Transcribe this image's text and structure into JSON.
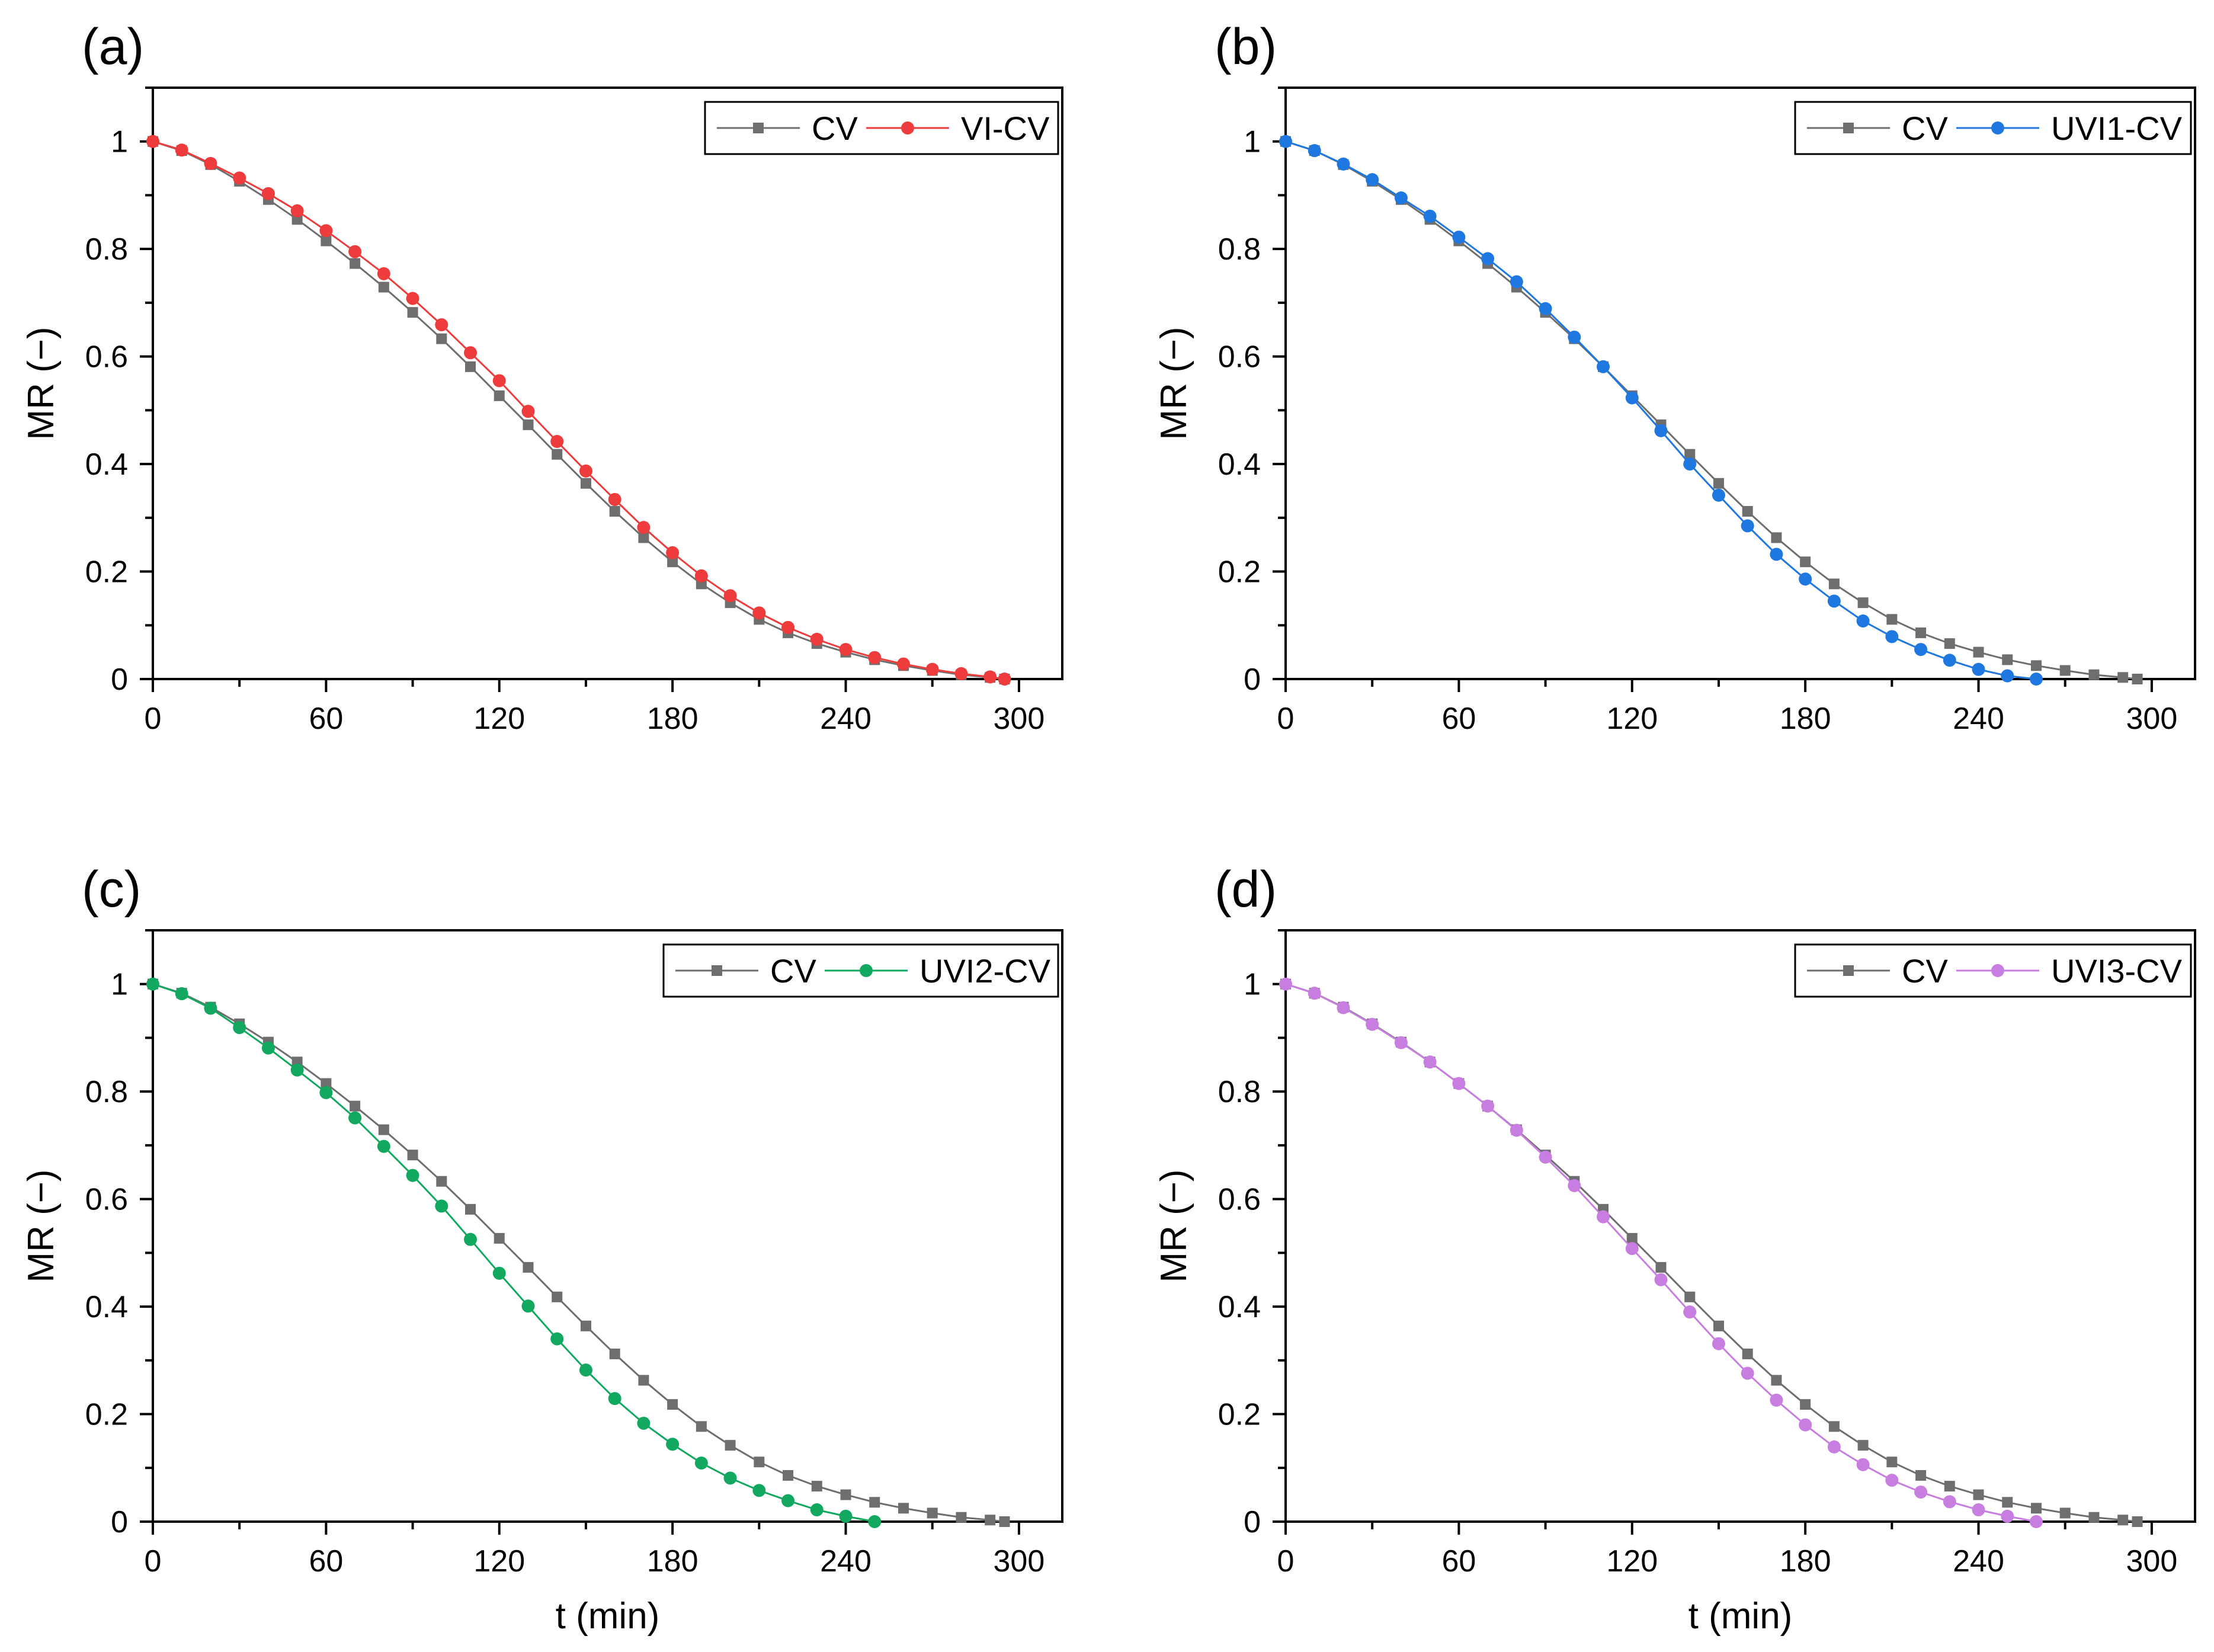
{
  "figure": {
    "panels": [
      {
        "label": "(a)",
        "ylabel": "MR (−)",
        "xlabel": "",
        "chart": {
          "type": "line",
          "xlim": [
            0,
            315
          ],
          "ylim": [
            0,
            1.1
          ],
          "xticks": [
            0,
            60,
            120,
            180,
            240,
            300
          ],
          "xtick_labels": [
            "0",
            "60",
            "120",
            "180",
            "240",
            "300"
          ],
          "yticks": [
            0,
            0.2,
            0.4,
            0.6,
            0.8,
            1.0
          ],
          "ytick_labels": [
            "0",
            "0.2",
            "0.4",
            "0.6",
            "0.8",
            "1"
          ],
          "legend_position": "top-right",
          "grid": false,
          "series": [
            {
              "name": "CV",
              "color": "#6e6e6e",
              "marker": "square",
              "x": [
                0,
                10,
                20,
                30,
                40,
                50,
                60,
                70,
                80,
                90,
                100,
                110,
                120,
                130,
                140,
                150,
                160,
                170,
                180,
                190,
                200,
                210,
                220,
                230,
                240,
                250,
                260,
                270,
                280,
                290,
                295
              ],
              "y": [
                1.0,
                0.983,
                0.957,
                0.926,
                0.892,
                0.855,
                0.815,
                0.773,
                0.729,
                0.682,
                0.633,
                0.581,
                0.527,
                0.473,
                0.418,
                0.364,
                0.312,
                0.263,
                0.218,
                0.177,
                0.142,
                0.111,
                0.086,
                0.066,
                0.05,
                0.036,
                0.025,
                0.016,
                0.008,
                0.003,
                0.0
              ]
            },
            {
              "name": "VI-CV",
              "color": "#ee3b3b",
              "marker": "circle",
              "x": [
                0,
                10,
                20,
                30,
                40,
                50,
                60,
                70,
                80,
                90,
                100,
                110,
                120,
                130,
                140,
                150,
                160,
                170,
                180,
                190,
                200,
                210,
                220,
                230,
                240,
                250,
                260,
                270,
                280,
                290,
                295
              ],
              "y": [
                1.0,
                0.984,
                0.959,
                0.932,
                0.903,
                0.871,
                0.834,
                0.795,
                0.754,
                0.708,
                0.659,
                0.607,
                0.555,
                0.498,
                0.442,
                0.387,
                0.334,
                0.282,
                0.235,
                0.192,
                0.155,
                0.123,
                0.096,
                0.074,
                0.055,
                0.04,
                0.028,
                0.018,
                0.01,
                0.004,
                0.0
              ]
            }
          ]
        }
      },
      {
        "label": "(b)",
        "ylabel": "MR (−)",
        "xlabel": "",
        "chart": {
          "type": "line",
          "xlim": [
            0,
            315
          ],
          "ylim": [
            0,
            1.1
          ],
          "xticks": [
            0,
            60,
            120,
            180,
            240,
            300
          ],
          "xtick_labels": [
            "0",
            "60",
            "120",
            "180",
            "240",
            "300"
          ],
          "yticks": [
            0,
            0.2,
            0.4,
            0.6,
            0.8,
            1.0
          ],
          "ytick_labels": [
            "0",
            "0.2",
            "0.4",
            "0.6",
            "0.8",
            "1"
          ],
          "legend_position": "top-right",
          "grid": false,
          "series": [
            {
              "name": "CV",
              "color": "#6e6e6e",
              "marker": "square",
              "x": [
                0,
                10,
                20,
                30,
                40,
                50,
                60,
                70,
                80,
                90,
                100,
                110,
                120,
                130,
                140,
                150,
                160,
                170,
                180,
                190,
                200,
                210,
                220,
                230,
                240,
                250,
                260,
                270,
                280,
                290,
                295
              ],
              "y": [
                1.0,
                0.983,
                0.957,
                0.926,
                0.892,
                0.855,
                0.815,
                0.773,
                0.729,
                0.682,
                0.633,
                0.581,
                0.527,
                0.473,
                0.418,
                0.364,
                0.312,
                0.263,
                0.218,
                0.177,
                0.142,
                0.111,
                0.086,
                0.066,
                0.05,
                0.036,
                0.025,
                0.016,
                0.008,
                0.003,
                0.0
              ]
            },
            {
              "name": "UVI1-CV",
              "color": "#1f77e0",
              "marker": "circle",
              "x": [
                0,
                10,
                20,
                30,
                40,
                50,
                60,
                70,
                80,
                90,
                100,
                110,
                120,
                130,
                140,
                150,
                160,
                170,
                180,
                190,
                200,
                210,
                220,
                230,
                240,
                250,
                260
              ],
              "y": [
                1.0,
                0.983,
                0.958,
                0.929,
                0.895,
                0.861,
                0.822,
                0.782,
                0.739,
                0.689,
                0.636,
                0.581,
                0.523,
                0.462,
                0.4,
                0.342,
                0.285,
                0.232,
                0.186,
                0.145,
                0.108,
                0.079,
                0.055,
                0.035,
                0.018,
                0.006,
                0.0
              ]
            }
          ]
        }
      },
      {
        "label": "(c)",
        "ylabel": "MR (−)",
        "xlabel": "t (min)",
        "chart": {
          "type": "line",
          "xlim": [
            0,
            315
          ],
          "ylim": [
            0,
            1.1
          ],
          "xticks": [
            0,
            60,
            120,
            180,
            240,
            300
          ],
          "xtick_labels": [
            "0",
            "60",
            "120",
            "180",
            "240",
            "300"
          ],
          "yticks": [
            0,
            0.2,
            0.4,
            0.6,
            0.8,
            1.0
          ],
          "ytick_labels": [
            "0",
            "0.2",
            "0.4",
            "0.6",
            "0.8",
            "1"
          ],
          "legend_position": "top-right",
          "grid": false,
          "series": [
            {
              "name": "CV",
              "color": "#6e6e6e",
              "marker": "square",
              "x": [
                0,
                10,
                20,
                30,
                40,
                50,
                60,
                70,
                80,
                90,
                100,
                110,
                120,
                130,
                140,
                150,
                160,
                170,
                180,
                190,
                200,
                210,
                220,
                230,
                240,
                250,
                260,
                270,
                280,
                290,
                295
              ],
              "y": [
                1.0,
                0.983,
                0.957,
                0.926,
                0.892,
                0.855,
                0.815,
                0.773,
                0.729,
                0.682,
                0.633,
                0.581,
                0.527,
                0.473,
                0.418,
                0.364,
                0.312,
                0.263,
                0.218,
                0.177,
                0.142,
                0.111,
                0.086,
                0.066,
                0.05,
                0.036,
                0.025,
                0.016,
                0.008,
                0.003,
                0.0
              ]
            },
            {
              "name": "UVI2-CV",
              "color": "#12a860",
              "marker": "circle",
              "x": [
                0,
                10,
                20,
                30,
                40,
                50,
                60,
                70,
                80,
                90,
                100,
                110,
                120,
                130,
                140,
                150,
                160,
                170,
                180,
                190,
                200,
                210,
                220,
                230,
                240,
                250
              ],
              "y": [
                1.0,
                0.982,
                0.955,
                0.919,
                0.881,
                0.84,
                0.798,
                0.751,
                0.698,
                0.644,
                0.587,
                0.525,
                0.462,
                0.401,
                0.34,
                0.282,
                0.229,
                0.183,
                0.144,
                0.109,
                0.081,
                0.058,
                0.039,
                0.022,
                0.01,
                0.0
              ]
            }
          ]
        }
      },
      {
        "label": "(d)",
        "ylabel": "MR (−)",
        "xlabel": "t (min)",
        "chart": {
          "type": "line",
          "xlim": [
            0,
            315
          ],
          "ylim": [
            0,
            1.1
          ],
          "xticks": [
            0,
            60,
            120,
            180,
            240,
            300
          ],
          "xtick_labels": [
            "0",
            "60",
            "120",
            "180",
            "240",
            "300"
          ],
          "yticks": [
            0,
            0.2,
            0.4,
            0.6,
            0.8,
            1.0
          ],
          "ytick_labels": [
            "0",
            "0.2",
            "0.4",
            "0.6",
            "0.8",
            "1"
          ],
          "legend_position": "top-right",
          "grid": false,
          "series": [
            {
              "name": "CV",
              "color": "#6e6e6e",
              "marker": "square",
              "x": [
                0,
                10,
                20,
                30,
                40,
                50,
                60,
                70,
                80,
                90,
                100,
                110,
                120,
                130,
                140,
                150,
                160,
                170,
                180,
                190,
                200,
                210,
                220,
                230,
                240,
                250,
                260,
                270,
                280,
                290,
                295
              ],
              "y": [
                1.0,
                0.983,
                0.957,
                0.926,
                0.892,
                0.855,
                0.815,
                0.773,
                0.729,
                0.682,
                0.633,
                0.581,
                0.527,
                0.473,
                0.418,
                0.364,
                0.312,
                0.263,
                0.218,
                0.177,
                0.142,
                0.111,
                0.086,
                0.066,
                0.05,
                0.036,
                0.025,
                0.016,
                0.008,
                0.003,
                0.0
              ]
            },
            {
              "name": "UVI3-CV",
              "color": "#c77ee0",
              "marker": "circle",
              "x": [
                0,
                10,
                20,
                30,
                40,
                50,
                60,
                70,
                80,
                90,
                100,
                110,
                120,
                130,
                140,
                150,
                160,
                170,
                180,
                190,
                200,
                210,
                220,
                230,
                240,
                250,
                260
              ],
              "y": [
                1.0,
                0.983,
                0.956,
                0.925,
                0.891,
                0.855,
                0.815,
                0.773,
                0.728,
                0.678,
                0.625,
                0.567,
                0.508,
                0.45,
                0.39,
                0.331,
                0.276,
                0.226,
                0.18,
                0.139,
                0.106,
                0.077,
                0.055,
                0.037,
                0.022,
                0.01,
                0.0
              ]
            }
          ]
        }
      }
    ]
  }
}
